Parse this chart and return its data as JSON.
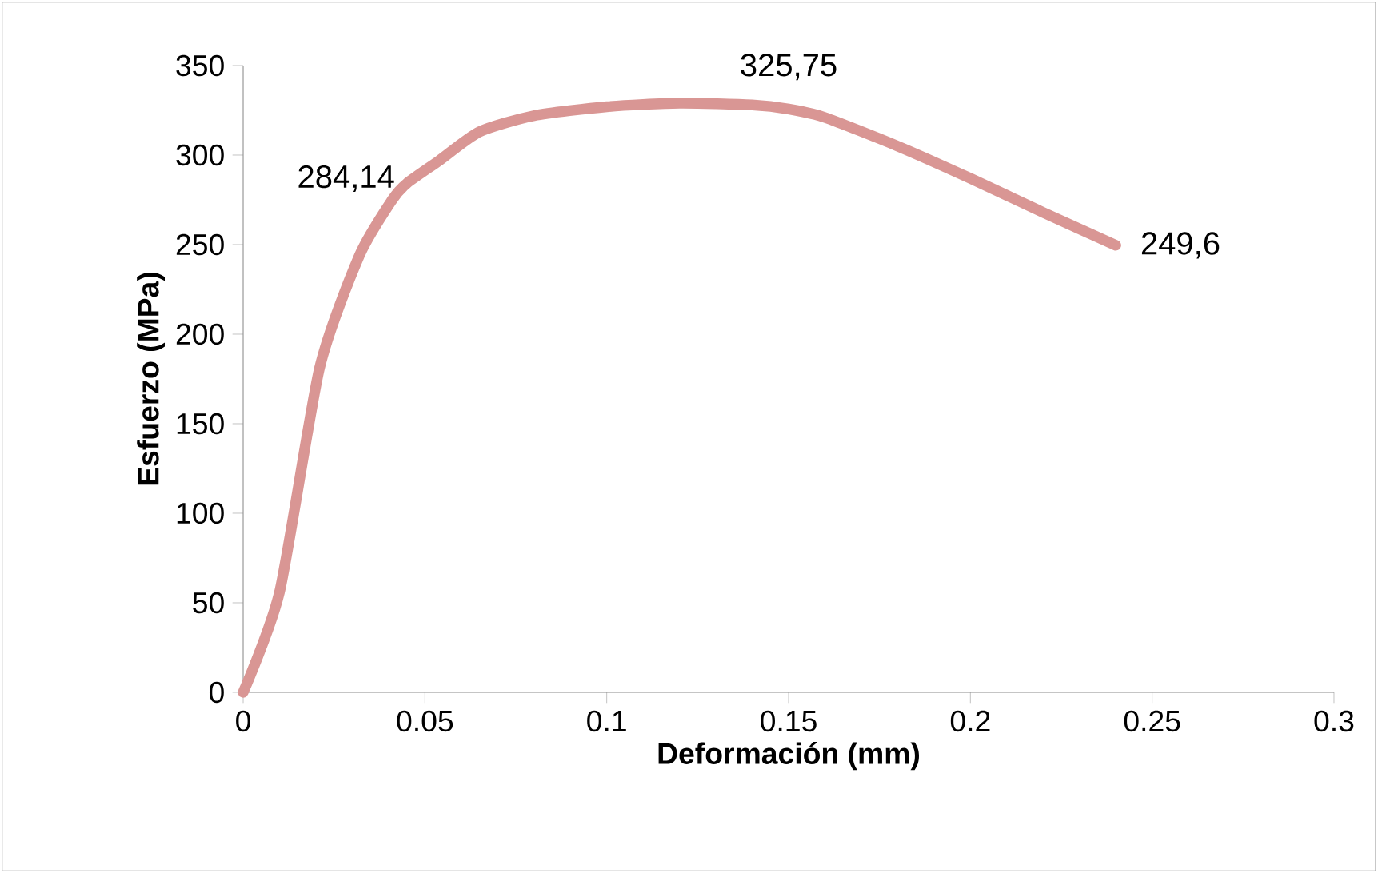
{
  "chart_data": {
    "type": "line",
    "xlabel": "Deformación (mm)",
    "ylabel": "Esfuerzo (MPa)",
    "x": [
      0,
      0.01,
      0.021,
      0.032,
      0.041,
      0.045,
      0.054,
      0.065,
      0.08,
      0.1,
      0.12,
      0.14,
      0.15,
      0.16,
      0.18,
      0.2,
      0.22,
      0.24
    ],
    "values": [
      0,
      56,
      181,
      244,
      275,
      284.14,
      297,
      313,
      322,
      327,
      329,
      328,
      325.75,
      321,
      305,
      287,
      268,
      249.6
    ],
    "value_labels": [
      null,
      null,
      null,
      null,
      null,
      "284,14",
      null,
      null,
      null,
      null,
      null,
      null,
      "325,75",
      null,
      null,
      null,
      null,
      "249,6"
    ],
    "color": "#d99694",
    "xlim": [
      0,
      0.3
    ],
    "xticks": [
      0,
      0.05,
      0.1,
      0.15,
      0.2,
      0.25,
      0.3
    ],
    "ylim": [
      0,
      350
    ],
    "yticks": [
      0,
      50,
      100,
      150,
      200,
      250,
      300,
      350
    ],
    "grid": false,
    "marker": "none",
    "line_style": "solid"
  }
}
